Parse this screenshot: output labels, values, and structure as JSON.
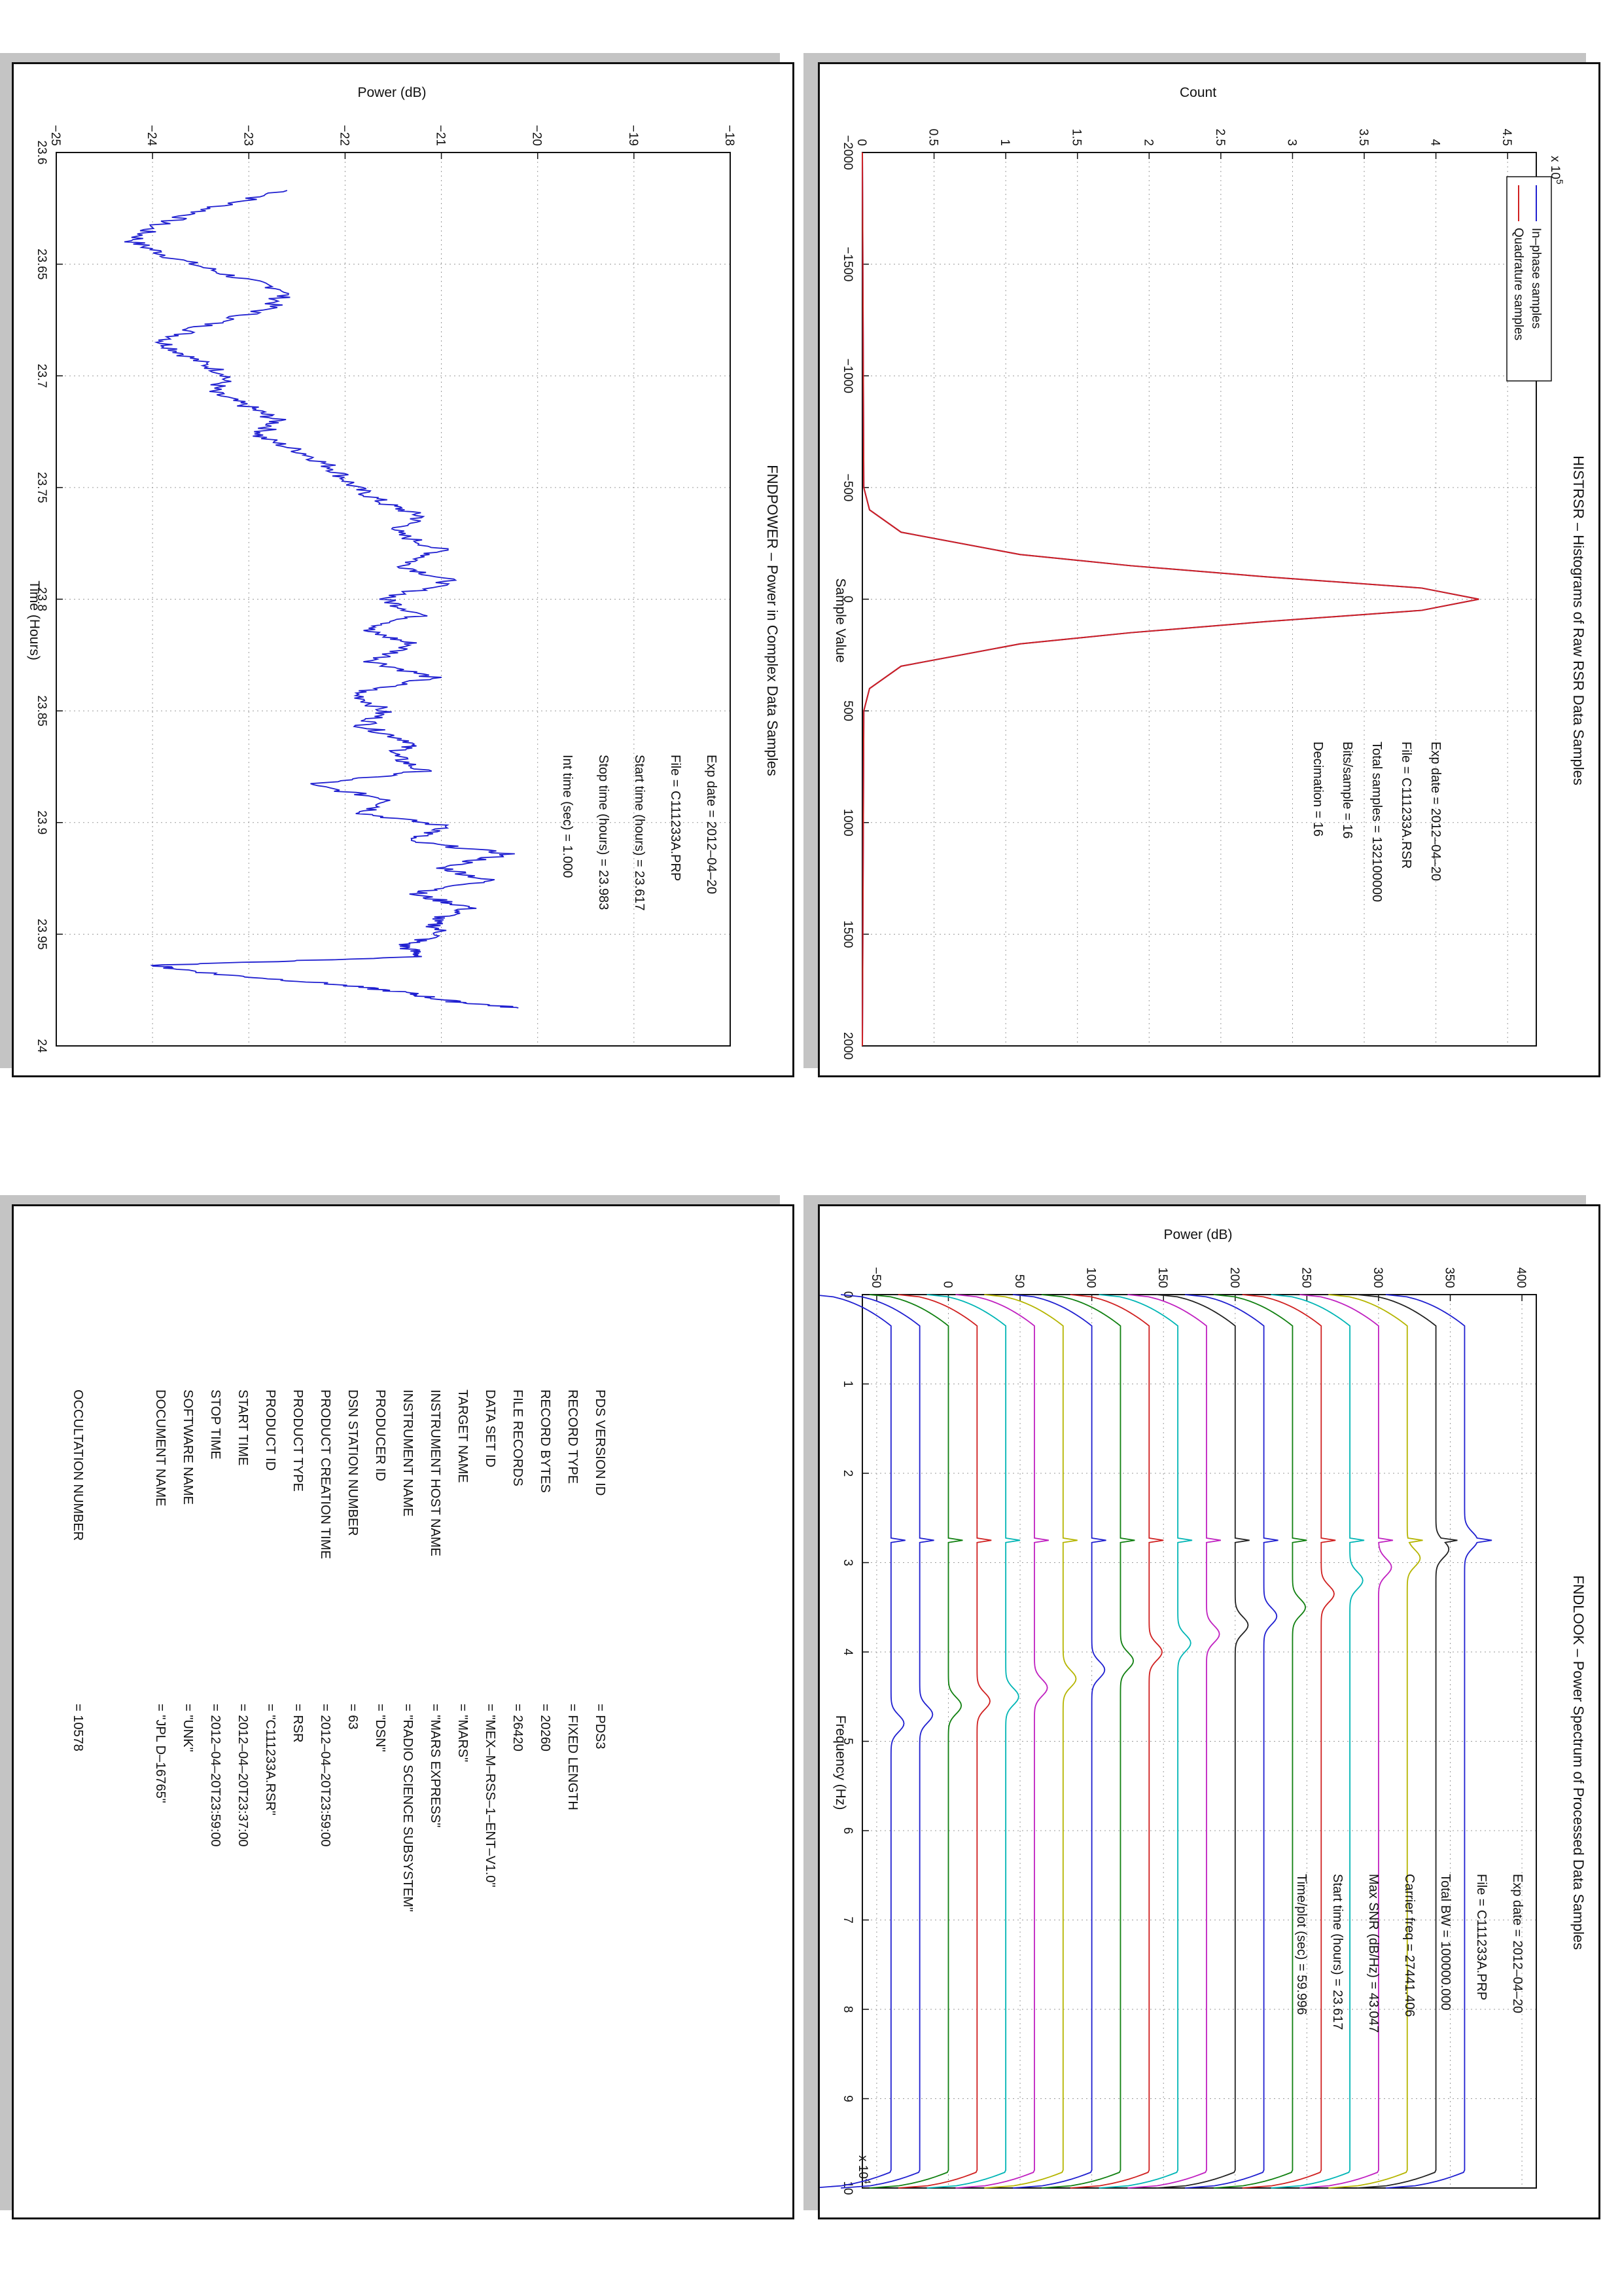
{
  "histogram": {
    "title": "HISTRSR – Histograms of Raw RSR Data Samples",
    "xlabel": "Sample Value",
    "ylabel": "Count",
    "yexp": "x 10",
    "yexp_power": "5",
    "xticks": [
      "−2000",
      "−1500",
      "−1000",
      "−500",
      "0",
      "500",
      "1000",
      "1500",
      "2000"
    ],
    "yticks": [
      "0",
      "0.5",
      "1",
      "1.5",
      "2",
      "2.5",
      "3",
      "3.5",
      "4",
      "4.5"
    ],
    "legend": [
      "In–phase samples",
      "Quadrature samples"
    ],
    "annotations": [
      "Exp date = 2012–04–20",
      "File = C111233A.RSR",
      "Total samples =  132100000",
      "Bits/sample   =      16",
      "Decimation   =      16"
    ]
  },
  "fndlook": {
    "title": "FNDLOOK – Power Spectrum of Processed Data Samples",
    "xlabel": "Frequency (Hz)",
    "ylabel": "Power (dB)",
    "xexp": "x 10",
    "xexp_power": "4",
    "xticks": [
      "0",
      "1",
      "2",
      "3",
      "4",
      "5",
      "6",
      "7",
      "8",
      "9",
      "10"
    ],
    "yticks": [
      "−50",
      "0",
      "50",
      "100",
      "150",
      "200",
      "250",
      "300",
      "350",
      "400"
    ],
    "annotations": [
      "Exp date = 2012–04–20",
      "File = C111233A.PRP",
      "Total BW =    100000.000",
      "Carrier freq =   27441.406",
      "Max SNR (dB/Hz) =    43.047",
      "Start time (hours) =   23.617",
      "Time/plot (sec) =    59.996"
    ]
  },
  "fndpower": {
    "title": "FNDPOWER – Power in Complex Data Samples",
    "xlabel": "Time (Hours)",
    "ylabel": "Power (dB)",
    "xticks": [
      "23.6",
      "23.65",
      "23.7",
      "23.75",
      "23.8",
      "23.85",
      "23.9",
      "23.95",
      "24"
    ],
    "yticks": [
      "−25",
      "−24",
      "−23",
      "−22",
      "−21",
      "−20",
      "−19",
      "−18"
    ],
    "annotations": [
      "Exp date = 2012–04–20",
      "File = C111233A.PRP",
      "Start time (hours) = 23.617",
      "Stop time (hours) = 23.983",
      "Int time (sec)  =      1.000"
    ]
  },
  "label": {
    "rows": [
      {
        "key": "PDS VERSION ID",
        "value": "=  PDS3"
      },
      {
        "key": "RECORD TYPE",
        "value": "=  FIXED LENGTH"
      },
      {
        "key": "RECORD BYTES",
        "value": "=  20260"
      },
      {
        "key": "FILE RECORDS",
        "value": "=  26420"
      },
      {
        "key": "DATA SET ID",
        "value": "=  \"MEX–M–RSS–1–ENT–V1.0\""
      },
      {
        "key": "TARGET NAME",
        "value": "=  \"MARS\""
      },
      {
        "key": "INSTRUMENT HOST NAME",
        "value": "=  \"MARS EXPRESS\""
      },
      {
        "key": "INSTRUMENT NAME",
        "value": "=  \"RADIO SCIENCE SUBSYSTEM\""
      },
      {
        "key": "PRODUCER ID",
        "value": "=  \"DSN\""
      },
      {
        "key": "DSN STATION NUMBER",
        "value": "=  63"
      },
      {
        "key": "PRODUCT CREATION TIME",
        "value": "=  2012–04–20T23:59:00"
      },
      {
        "key": "PRODUCT TYPE",
        "value": "=  RSR"
      },
      {
        "key": "PRODUCT ID",
        "value": "=  \"C111233A.RSR\""
      },
      {
        "key": "START TIME",
        "value": "=  2012–04–20T23:37:00"
      },
      {
        "key": "STOP TIME",
        "value": "=  2012–04–20T23:59:00"
      },
      {
        "key": "SOFTWARE NAME",
        "value": "=  \"UNK\""
      },
      {
        "key": "DOCUMENT NAME",
        "value": "=  \"JPL D–16765\""
      },
      {
        "key": "",
        "value": ""
      },
      {
        "key": "OCCULTATION NUMBER",
        "value": "=  10578"
      }
    ]
  },
  "chart_data": [
    {
      "type": "line",
      "title": "HISTRSR – Histograms of Raw RSR Data Samples",
      "xlabel": "Sample Value",
      "ylabel": "Count (x 10^5)",
      "xlim": [
        -2000,
        2000
      ],
      "ylim": [
        0,
        4.7
      ],
      "grid": true,
      "legend": "top-left",
      "series": [
        {
          "name": "In–phase samples",
          "color": "#1f1fd0",
          "x": [
            -2000,
            -500,
            -400,
            -300,
            -200,
            -150,
            -100,
            -50,
            0,
            50,
            100,
            150,
            200,
            300,
            400,
            500,
            2000
          ],
          "y": [
            0,
            0.01,
            0.05,
            0.27,
            1.1,
            1.87,
            2.82,
            3.9,
            4.3,
            3.9,
            2.82,
            1.87,
            1.1,
            0.27,
            0.05,
            0.01,
            0
          ]
        },
        {
          "name": "Quadrature samples",
          "color": "#d02020",
          "x": [
            -2000,
            -500,
            -400,
            -300,
            -200,
            -150,
            -100,
            -50,
            0,
            50,
            100,
            150,
            200,
            300,
            400,
            500,
            2000
          ],
          "y": [
            0,
            0.01,
            0.05,
            0.27,
            1.1,
            1.87,
            2.82,
            3.9,
            4.3,
            3.9,
            2.82,
            1.87,
            1.1,
            0.27,
            0.05,
            0.01,
            0
          ]
        }
      ]
    },
    {
      "type": "line",
      "title": "FNDLOOK – Power Spectrum of Processed Data Samples",
      "xlabel": "Frequency (Hz) (x 10^4)",
      "ylabel": "Power (dB)",
      "xlim": [
        0,
        10
      ],
      "ylim": [
        -60,
        410
      ],
      "grid": true,
      "carrier_x": 2.744,
      "series_offsets": [
        360,
        340,
        320,
        300,
        280,
        260,
        240,
        220,
        200,
        180,
        160,
        140,
        120,
        100,
        80,
        60,
        40,
        20,
        0,
        -20,
        -40
      ],
      "series_colors": [
        "#1f1fd0",
        "#222222",
        "#b5b500",
        "#c020c0",
        "#00b5b5",
        "#d02020",
        "#108010",
        "#1f1fd0",
        "#222222",
        "#c020c0",
        "#00b5b5",
        "#d02020",
        "#108010",
        "#1f1fd0",
        "#b5b500",
        "#c020c0",
        "#00b5b5",
        "#d02020",
        "#108010",
        "#1f1fd0",
        "#1f1fd0"
      ],
      "bump_x": [
        2.75,
        2.85,
        2.95,
        3.05,
        3.2,
        3.35,
        3.5,
        3.6,
        3.7,
        3.8,
        3.9,
        4.0,
        4.1,
        4.2,
        4.3,
        4.4,
        4.5,
        4.55,
        4.6,
        4.7,
        4.8
      ]
    },
    {
      "type": "line",
      "title": "FNDPOWER – Power in Complex Data Samples",
      "xlabel": "Time (Hours)",
      "ylabel": "Power (dB)",
      "xlim": [
        23.6,
        24
      ],
      "ylim": [
        -25,
        -18
      ],
      "grid": true,
      "series": [
        {
          "name": "",
          "color": "#1f1fd0",
          "x": [
            23.617,
            23.625,
            23.633,
            23.64,
            23.647,
            23.655,
            23.662,
            23.67,
            23.678,
            23.685,
            23.692,
            23.7,
            23.707,
            23.714,
            23.72,
            23.727,
            23.735,
            23.742,
            23.75,
            23.757,
            23.763,
            23.77,
            23.778,
            23.785,
            23.792,
            23.8,
            23.807,
            23.814,
            23.82,
            23.828,
            23.835,
            23.842,
            23.85,
            23.857,
            23.864,
            23.87,
            23.877,
            23.883,
            23.89,
            23.896,
            23.902,
            23.908,
            23.914,
            23.92,
            23.926,
            23.932,
            23.938,
            23.944,
            23.95,
            23.955,
            23.96,
            23.964,
            23.968,
            23.972,
            23.976,
            23.98,
            23.983
          ],
          "y": [
            -22.6,
            -23.4,
            -24.0,
            -24.2,
            -23.8,
            -23.2,
            -22.6,
            -22.8,
            -23.5,
            -23.9,
            -23.6,
            -23.2,
            -23.4,
            -23.0,
            -22.7,
            -22.9,
            -22.4,
            -22.1,
            -21.9,
            -21.6,
            -21.2,
            -21.5,
            -21.0,
            -21.4,
            -20.9,
            -21.6,
            -21.2,
            -21.8,
            -21.3,
            -21.7,
            -21.1,
            -21.9,
            -21.6,
            -21.8,
            -21.3,
            -21.5,
            -21.2,
            -22.4,
            -21.5,
            -21.8,
            -20.9,
            -21.4,
            -20.3,
            -21.0,
            -20.5,
            -21.3,
            -20.7,
            -21.1,
            -21.0,
            -21.4,
            -21.2,
            -24.0,
            -23.3,
            -22.2,
            -21.4,
            -20.9,
            -20.2
          ]
        }
      ]
    }
  ]
}
